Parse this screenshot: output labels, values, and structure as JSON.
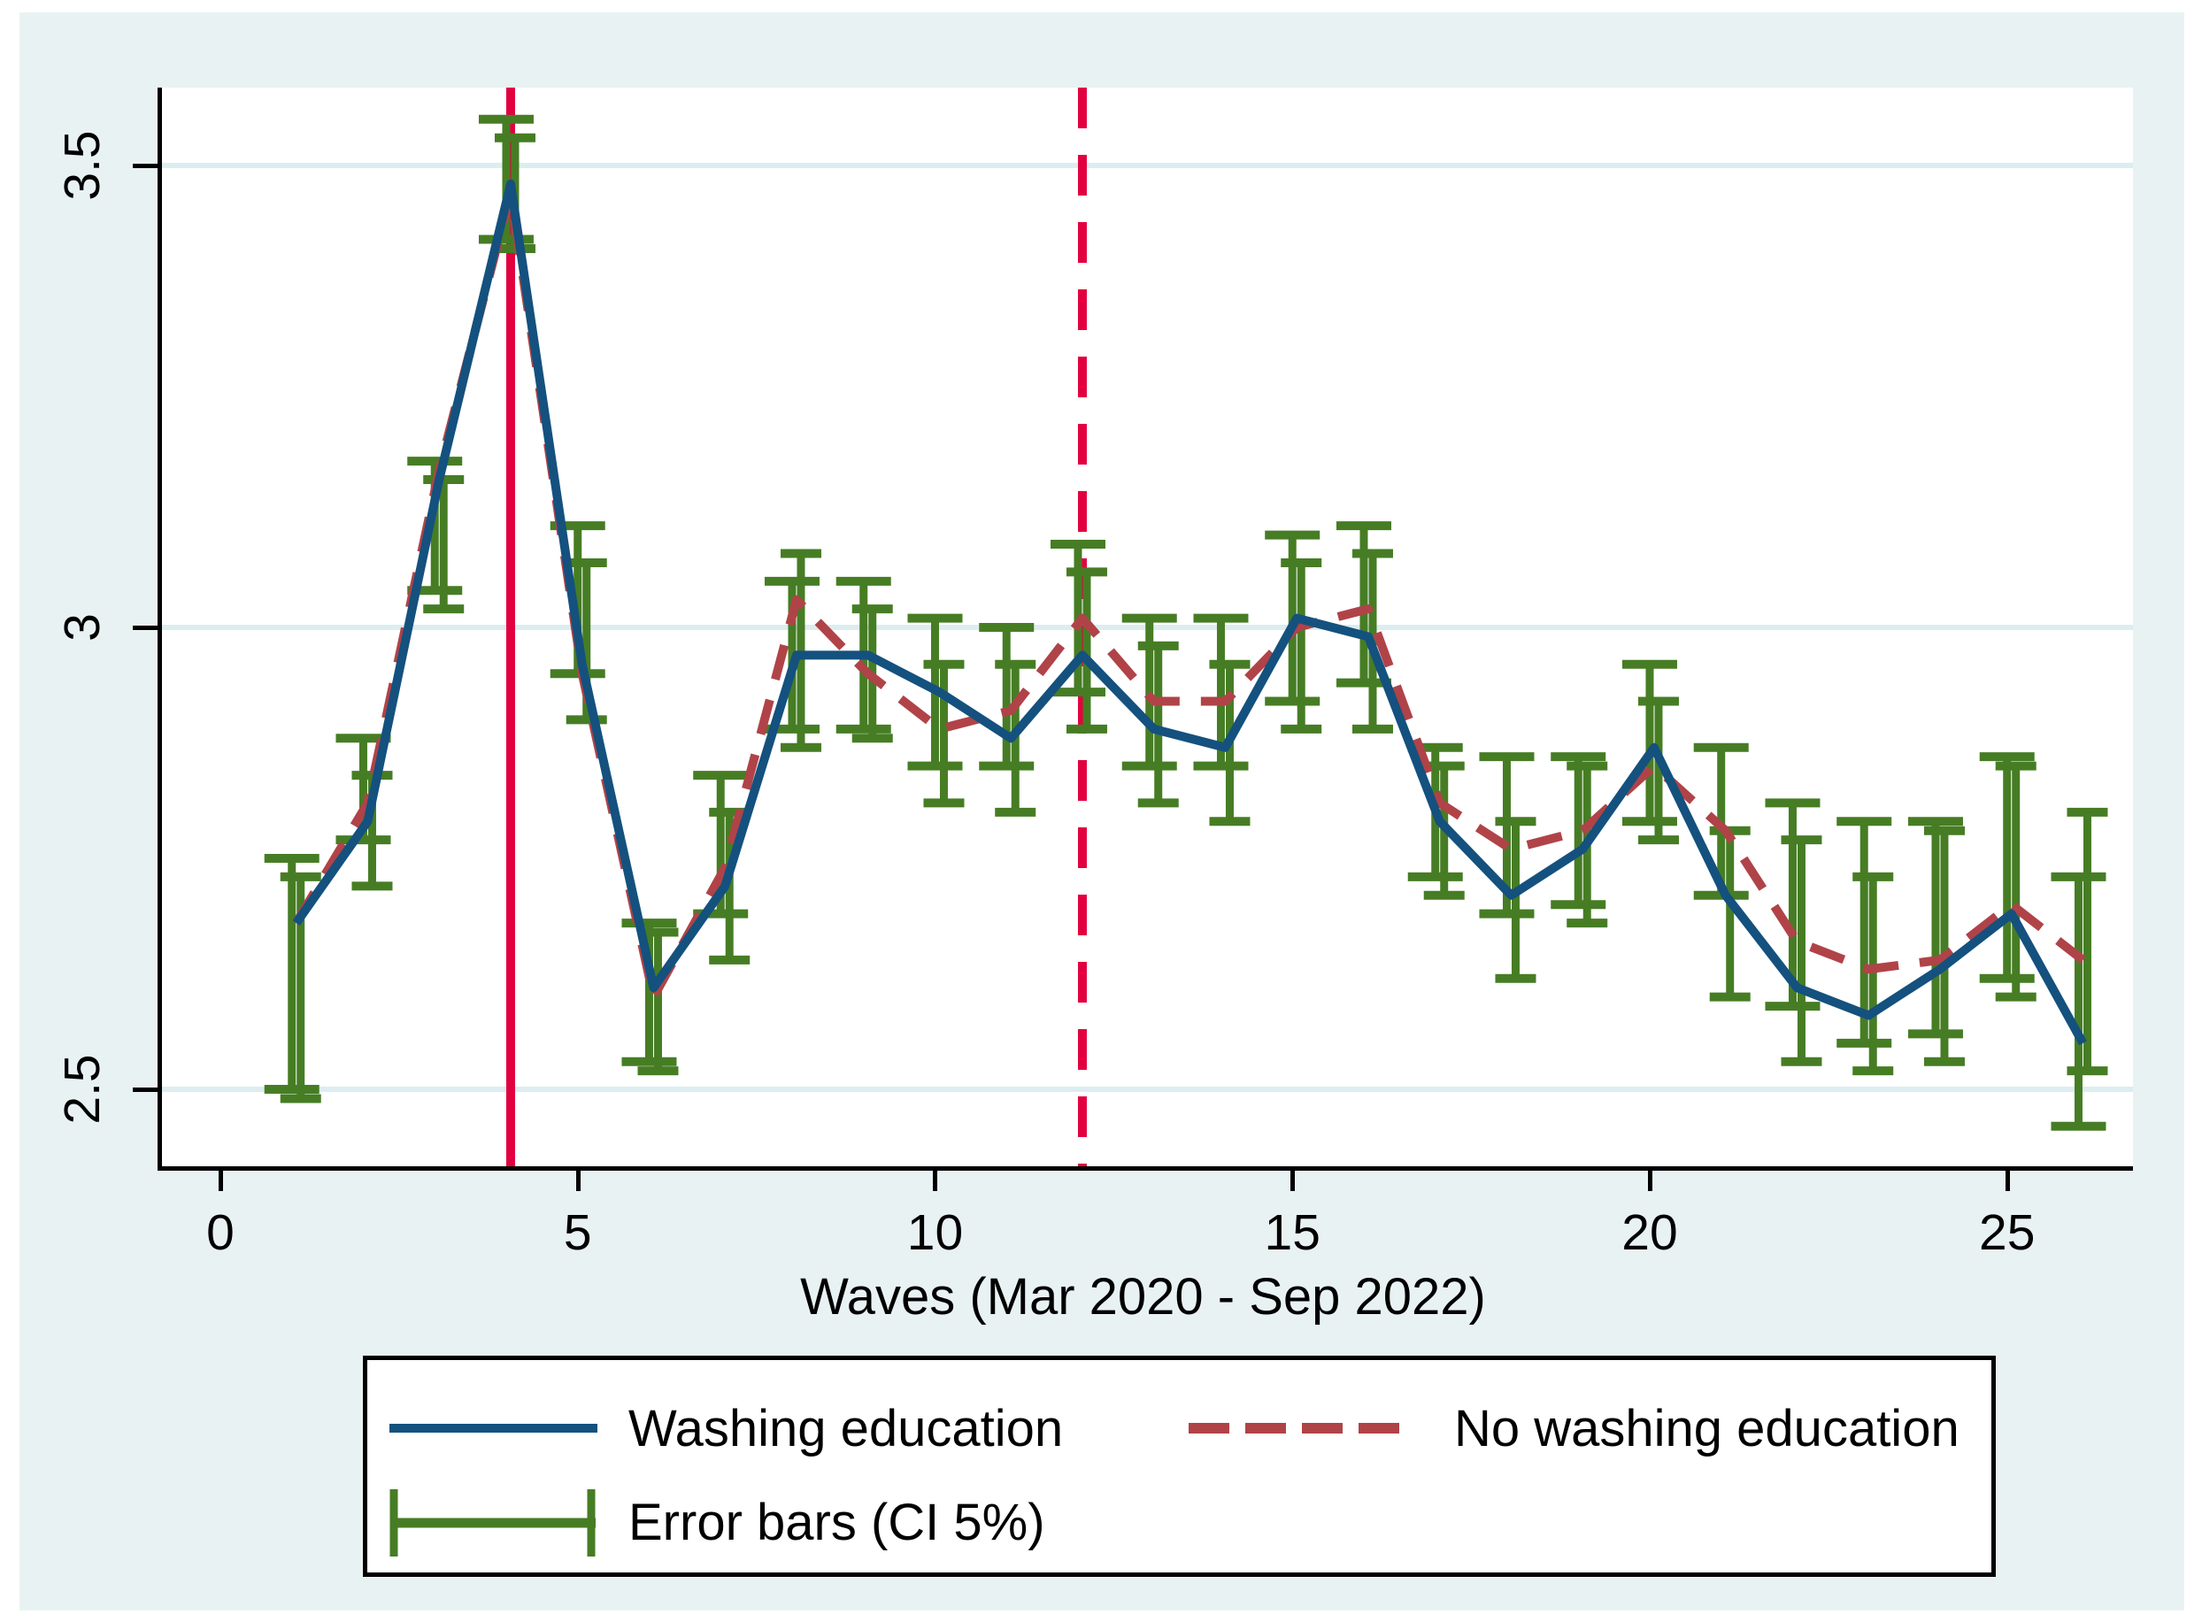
{
  "figure": {
    "x_axis_title": "Waves (Mar 2020 - Sep 2022)",
    "legend": {
      "series1": "Washing education",
      "series2": "No washing education",
      "series3": "Error bars (CI 5%)"
    }
  },
  "chart_data": {
    "type": "line",
    "title": "",
    "xlabel": "Waves (Mar 2020 - Sep 2022)",
    "ylabel": "",
    "grid": "horizontal",
    "legend_position": "bottom",
    "background_color": "#e9f2f3",
    "plot_background": "#ffffff",
    "gridline_color": "#dcedf0",
    "xlim": [
      -0.879,
      26.7
    ],
    "ylim": [
      2.4167,
      3.5843
    ],
    "x_ticks": [
      {
        "v": 0,
        "label": "0"
      },
      {
        "v": 5,
        "label": "5"
      },
      {
        "v": 10,
        "label": "10"
      },
      {
        "v": 15,
        "label": "15"
      },
      {
        "v": 20,
        "label": "20"
      },
      {
        "v": 25,
        "label": "25"
      }
    ],
    "y_ticks": [
      {
        "v": 2.5,
        "label": "2.5"
      },
      {
        "v": 3,
        "label": "3"
      },
      {
        "v": 3.5,
        "label": "3.5"
      }
    ],
    "vline_color": "#e2013f",
    "vlines": [
      {
        "x": 4,
        "style": "solid"
      },
      {
        "x": 12,
        "style": "dashed"
      }
    ],
    "error_bar_color": "#467d24",
    "x": [
      1,
      2,
      3,
      4,
      5,
      6,
      7,
      8,
      9,
      10,
      11,
      12,
      13,
      14,
      15,
      16,
      17,
      18,
      19,
      20,
      21,
      22,
      23,
      24,
      25,
      26
    ],
    "series": [
      {
        "name": "Washing education",
        "color": "#14517e",
        "style": "solid",
        "values": [
          2.68,
          2.79,
          3.16,
          3.48,
          2.96,
          2.61,
          2.72,
          2.97,
          2.97,
          2.93,
          2.88,
          2.97,
          2.89,
          2.87,
          3.01,
          2.99,
          2.79,
          2.71,
          2.76,
          2.87,
          2.71,
          2.61,
          2.58,
          2.63,
          2.69,
          2.55
        ],
        "ci": [
          [
            2.5,
            2.75
          ],
          [
            2.77,
            2.88
          ],
          [
            3.04,
            3.18
          ],
          [
            3.42,
            3.55
          ],
          [
            2.95,
            3.11
          ],
          [
            2.53,
            2.68
          ],
          [
            2.69,
            2.84
          ],
          [
            2.89,
            3.05
          ],
          [
            2.89,
            3.05
          ],
          [
            2.85,
            3.01
          ],
          [
            2.85,
            3.0
          ],
          [
            2.93,
            3.09
          ],
          [
            2.85,
            3.01
          ],
          [
            2.85,
            3.01
          ],
          [
            2.92,
            3.1
          ],
          [
            2.94,
            3.11
          ],
          [
            2.73,
            2.87
          ],
          [
            2.69,
            2.86
          ],
          [
            2.7,
            2.86
          ],
          [
            2.79,
            2.96
          ],
          [
            2.71,
            2.87
          ],
          [
            2.59,
            2.81
          ],
          [
            2.55,
            2.79
          ],
          [
            2.56,
            2.79
          ],
          [
            2.62,
            2.86
          ],
          [
            2.46,
            2.73
          ]
        ]
      },
      {
        "name": "No washing education",
        "color": "#b04348",
        "style": "dashed",
        "values": [
          2.68,
          2.81,
          3.17,
          3.47,
          2.95,
          2.6,
          2.74,
          3.03,
          2.95,
          2.89,
          2.91,
          3.01,
          2.92,
          2.92,
          3.0,
          3.02,
          2.81,
          2.76,
          2.78,
          2.85,
          2.78,
          2.66,
          2.63,
          2.64,
          2.7,
          2.64
        ],
        "ci": [
          [
            2.49,
            2.73
          ],
          [
            2.72,
            2.84
          ],
          [
            3.02,
            3.16
          ],
          [
            3.41,
            3.53
          ],
          [
            2.9,
            3.07
          ],
          [
            2.52,
            2.67
          ],
          [
            2.64,
            2.8
          ],
          [
            2.87,
            3.08
          ],
          [
            2.88,
            3.02
          ],
          [
            2.81,
            2.96
          ],
          [
            2.8,
            2.96
          ],
          [
            2.89,
            3.06
          ],
          [
            2.81,
            2.98
          ],
          [
            2.79,
            2.96
          ],
          [
            2.89,
            3.07
          ],
          [
            2.89,
            3.08
          ],
          [
            2.71,
            2.85
          ],
          [
            2.62,
            2.79
          ],
          [
            2.68,
            2.85
          ],
          [
            2.77,
            2.92
          ],
          [
            2.6,
            2.78
          ],
          [
            2.53,
            2.77
          ],
          [
            2.52,
            2.73
          ],
          [
            2.53,
            2.78
          ],
          [
            2.6,
            2.85
          ],
          [
            2.52,
            2.8
          ]
        ]
      }
    ]
  }
}
